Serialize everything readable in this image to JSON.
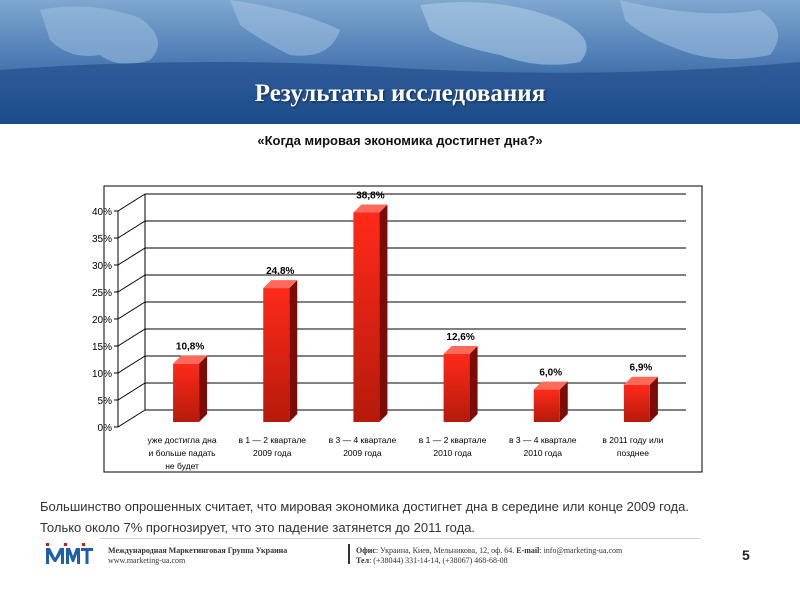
{
  "slide": {
    "title": "Результаты исследования",
    "question": "«Когда мировая экономика достигнет дна?»",
    "summary_line1": "Большинство опрошенных считает, что мировая экономика достигнет дна в середине или конце 2009 года.",
    "summary_line2": "Только около 7% прогнозирует, что это падение затянется до 2011 года.",
    "page_number": "5"
  },
  "footer": {
    "org_name": "Международная Маркетинговая Группа Украина",
    "website": "www.marketing-ua.com",
    "office_label": "Офис",
    "office_text": ": Украина, Киев, Мельникова, 12, оф. 64. ",
    "email_label": "E-mail",
    "email_text": ": info@marketing-ua.com",
    "tel_label": "Тел",
    "tel_text": ": (+38044) 331-14-14, (+38067) 468-68-08"
  },
  "colors": {
    "bar_top": "#ff2a1a",
    "bar_bottom": "#b51a0a",
    "bar_side": "#7a0c05",
    "bar_cap": "#ff6a5a",
    "header_blue": "#1f4f8d",
    "logo_blue": "#1f5fa8"
  },
  "chart_data": {
    "type": "bar",
    "categories": [
      [
        "уже достигла дна",
        "и больше падать",
        "не будет"
      ],
      [
        "в 1 — 2 квартале",
        "2009 года"
      ],
      [
        "в 3 — 4 квартале",
        "2009 года"
      ],
      [
        "в 1 — 2 квартале",
        "2010 года"
      ],
      [
        "в 3 — 4 квартале",
        "2010 года"
      ],
      [
        "в 2011 году или",
        "позднее"
      ]
    ],
    "values": [
      10.8,
      24.8,
      38.8,
      12.6,
      6.0,
      6.9
    ],
    "data_labels": [
      "10,8%",
      "24,8%",
      "38,8%",
      "12,6%",
      "6,0%",
      "6,9%"
    ],
    "yticks": [
      0,
      5,
      10,
      15,
      20,
      25,
      30,
      35,
      40
    ],
    "ytick_labels": [
      "0%",
      "5%",
      "10%",
      "15%",
      "20%",
      "25%",
      "30%",
      "35%",
      "40%"
    ],
    "ylim": [
      0,
      40
    ],
    "grid": true,
    "three_d": true
  }
}
